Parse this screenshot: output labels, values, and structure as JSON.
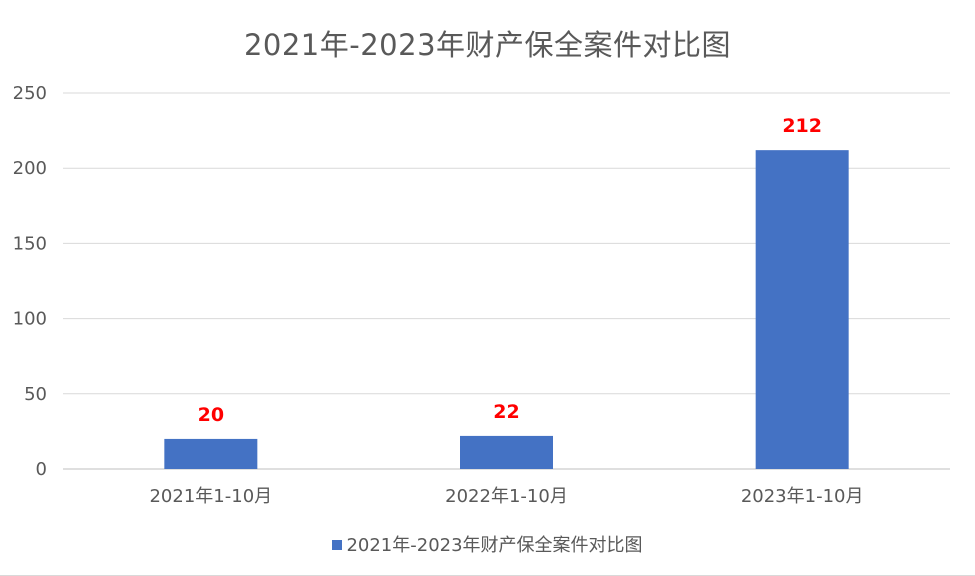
{
  "chart_data": {
    "type": "bar",
    "title": "2021年-2023年财产保全案件对比图",
    "categories": [
      "2021年1-10月",
      "2022年1-10月",
      "2023年1-10月"
    ],
    "series": [
      {
        "name": "2021年-2023年财产保全案件对比图",
        "values": [
          20,
          22,
          212
        ],
        "color": "#4472c4"
      }
    ],
    "data_labels": [
      "20",
      "22",
      "212"
    ],
    "data_label_color": "#ff0000",
    "ylim": [
      0,
      250
    ],
    "yticks": [
      0,
      50,
      100,
      150,
      200,
      250
    ],
    "grid": true,
    "legend_position": "bottom"
  }
}
